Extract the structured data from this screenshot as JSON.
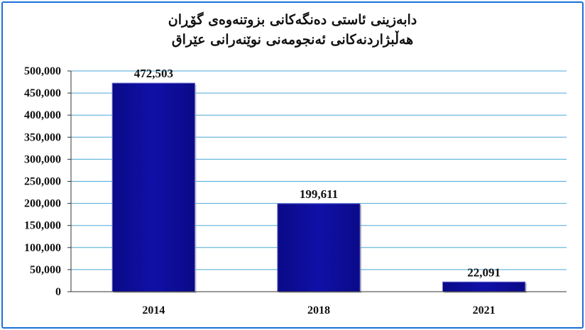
{
  "chart_data": {
    "type": "bar",
    "title_line1": "دابەزینی ئاستی دەنگەکانی بزوتنەوەی گۆڕان",
    "title_line2": "هەڵبژاردنەکانی ئەنجومەنی نوێنەرانی عێراق",
    "categories": [
      "2014",
      "2018",
      "2021"
    ],
    "values": [
      472503,
      199611,
      22091
    ],
    "value_labels": [
      "472,503",
      "199,611",
      "22,091"
    ],
    "ylim": [
      0,
      500000
    ],
    "yticks": [
      "0",
      "50,000",
      "100,000",
      "150,000",
      "200,000",
      "250,000",
      "300,000",
      "350,000",
      "400,000",
      "450,000",
      "500,000"
    ],
    "ytick_values": [
      0,
      50000,
      100000,
      150000,
      200000,
      250000,
      300000,
      350000,
      400000,
      450000,
      500000
    ],
    "grid": true,
    "bar_color": "#1010a8",
    "grid_color": "#4aa8d8"
  }
}
